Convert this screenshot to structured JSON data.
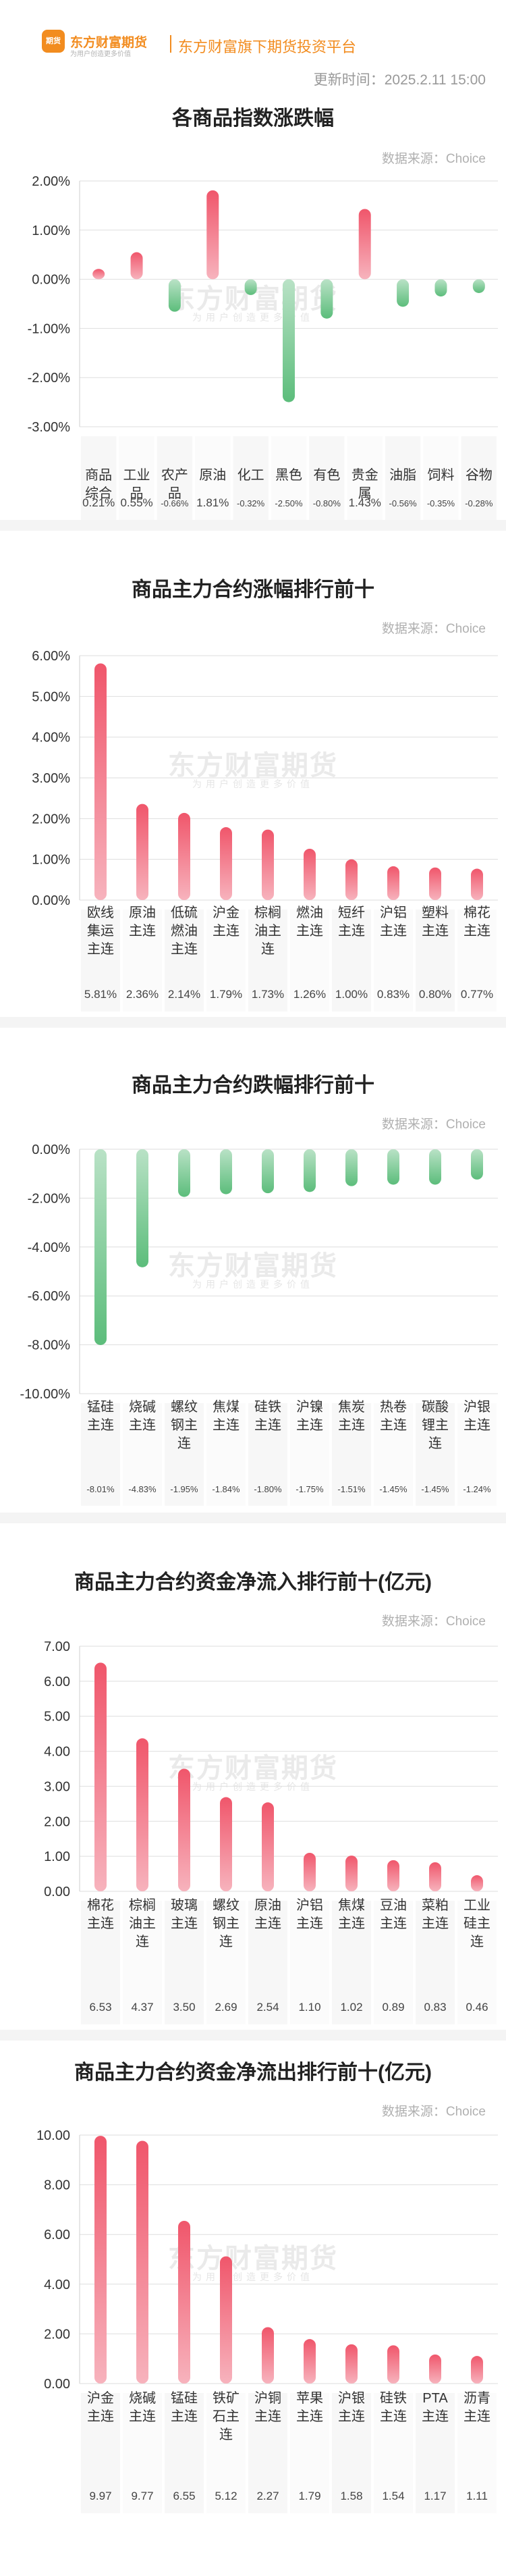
{
  "header": {
    "logo_text": "东方财富期货",
    "logo_subtext": "为用户创造更多价值",
    "tagline": "东方财富旗下期货投资平台",
    "update_time": "更新时间：2025.2.11 15:00"
  },
  "watermark": {
    "main": "东方财富期货",
    "sub": "为用户创造更多价值"
  },
  "colors": {
    "up": "#f0566b",
    "down": "#5cbd7b",
    "brand": "#f28c1f"
  },
  "chart_data": [
    {
      "type": "bar",
      "title": "各商品指数涨跌幅",
      "source": "数据来源：Choice",
      "categories": [
        "商品综合",
        "工业品",
        "农产品",
        "原油",
        "化工",
        "黑色",
        "有色",
        "贵金属",
        "油脂",
        "饲料",
        "谷物"
      ],
      "values": [
        0.21,
        0.55,
        -0.66,
        1.81,
        -0.32,
        -2.5,
        -0.8,
        1.43,
        -0.56,
        -0.35,
        -0.28
      ],
      "value_labels": [
        "0.21%",
        "0.55%",
        "-0.66%",
        "1.81%",
        "-0.32%",
        "-2.50%",
        "-0.80%",
        "1.43%",
        "-0.56%",
        "-0.35%",
        "-0.28%"
      ],
      "ylim": [
        -3,
        2
      ],
      "yticks": [
        2,
        1,
        0,
        -1,
        -2,
        -3
      ],
      "ytick_labels": [
        "2.00%",
        "1.00%",
        "0.00%",
        "-1.00%",
        "-2.00%",
        "-3.00%"
      ],
      "grid": true
    },
    {
      "type": "bar",
      "title": "商品主力合约涨幅排行前十",
      "source": "数据来源：Choice",
      "categories": [
        "欧线集运主连",
        "原油主连",
        "低硫燃油主连",
        "沪金主连",
        "棕榈油主连",
        "燃油主连",
        "短纤主连",
        "沪铝主连",
        "塑料主连",
        "棉花主连"
      ],
      "values": [
        5.81,
        2.36,
        2.14,
        1.79,
        1.73,
        1.26,
        1.0,
        0.83,
        0.8,
        0.77
      ],
      "value_labels": [
        "5.81%",
        "2.36%",
        "2.14%",
        "1.79%",
        "1.73%",
        "1.26%",
        "1.00%",
        "0.83%",
        "0.80%",
        "0.77%"
      ],
      "ylim": [
        0,
        6
      ],
      "yticks": [
        6,
        5,
        4,
        3,
        2,
        1,
        0
      ],
      "ytick_labels": [
        "6.00%",
        "5.00%",
        "4.00%",
        "3.00%",
        "2.00%",
        "1.00%",
        "0.00%"
      ],
      "grid": true
    },
    {
      "type": "bar",
      "title": "商品主力合约跌幅排行前十",
      "source": "数据来源：Choice",
      "categories": [
        "锰硅主连",
        "烧碱主连",
        "螺纹钢主连",
        "焦煤主连",
        "硅铁主连",
        "沪镍主连",
        "焦炭主连",
        "热卷主连",
        "碳酸锂主连",
        "沪银主连"
      ],
      "values": [
        -8.01,
        -4.83,
        -1.95,
        -1.84,
        -1.8,
        -1.75,
        -1.51,
        -1.45,
        -1.45,
        -1.24
      ],
      "value_labels": [
        "-8.01%",
        "-4.83%",
        "-1.95%",
        "-1.84%",
        "-1.80%",
        "-1.75%",
        "-1.51%",
        "-1.45%",
        "-1.45%",
        "-1.24%"
      ],
      "ylim": [
        -10,
        0
      ],
      "yticks": [
        0,
        -2,
        -4,
        -6,
        -8,
        -10
      ],
      "ytick_labels": [
        "0.00%",
        "-2.00%",
        "-4.00%",
        "-6.00%",
        "-8.00%",
        "-10.00%"
      ],
      "grid": true
    },
    {
      "type": "bar",
      "title": "商品主力合约资金净流入排行前十(亿元)",
      "source": "数据来源：Choice",
      "categories": [
        "棉花主连",
        "棕榈油主连",
        "玻璃主连",
        "螺纹钢主连",
        "原油主连",
        "沪铝主连",
        "焦煤主连",
        "豆油主连",
        "菜粕主连",
        "工业硅主连"
      ],
      "values": [
        6.53,
        4.37,
        3.5,
        2.69,
        2.54,
        1.1,
        1.02,
        0.89,
        0.83,
        0.46
      ],
      "value_labels": [
        "6.53",
        "4.37",
        "3.50",
        "2.69",
        "2.54",
        "1.10",
        "1.02",
        "0.89",
        "0.83",
        "0.46"
      ],
      "ylim": [
        0,
        7
      ],
      "yticks": [
        7,
        6,
        5,
        4,
        3,
        2,
        1,
        0
      ],
      "ytick_labels": [
        "7.00",
        "6.00",
        "5.00",
        "4.00",
        "3.00",
        "2.00",
        "1.00",
        "0.00"
      ],
      "grid": true
    },
    {
      "type": "bar",
      "title": "商品主力合约资金净流出排行前十(亿元)",
      "source": "数据来源：Choice",
      "categories": [
        "沪金主连",
        "烧碱主连",
        "锰硅主连",
        "铁矿石主连",
        "沪铜主连",
        "苹果主连",
        "沪银主连",
        "硅铁主连",
        "PTA主连",
        "沥青主连"
      ],
      "values": [
        9.97,
        9.77,
        6.55,
        5.12,
        2.27,
        1.79,
        1.58,
        1.54,
        1.17,
        1.11
      ],
      "value_labels": [
        "9.97",
        "9.77",
        "6.55",
        "5.12",
        "2.27",
        "1.79",
        "1.58",
        "1.54",
        "1.17",
        "1.11"
      ],
      "ylim": [
        0,
        10
      ],
      "yticks": [
        10,
        8,
        6,
        4,
        2,
        0
      ],
      "ytick_labels": [
        "10.00",
        "8.00",
        "6.00",
        "4.00",
        "2.00",
        "0.00"
      ],
      "grid": true
    }
  ]
}
